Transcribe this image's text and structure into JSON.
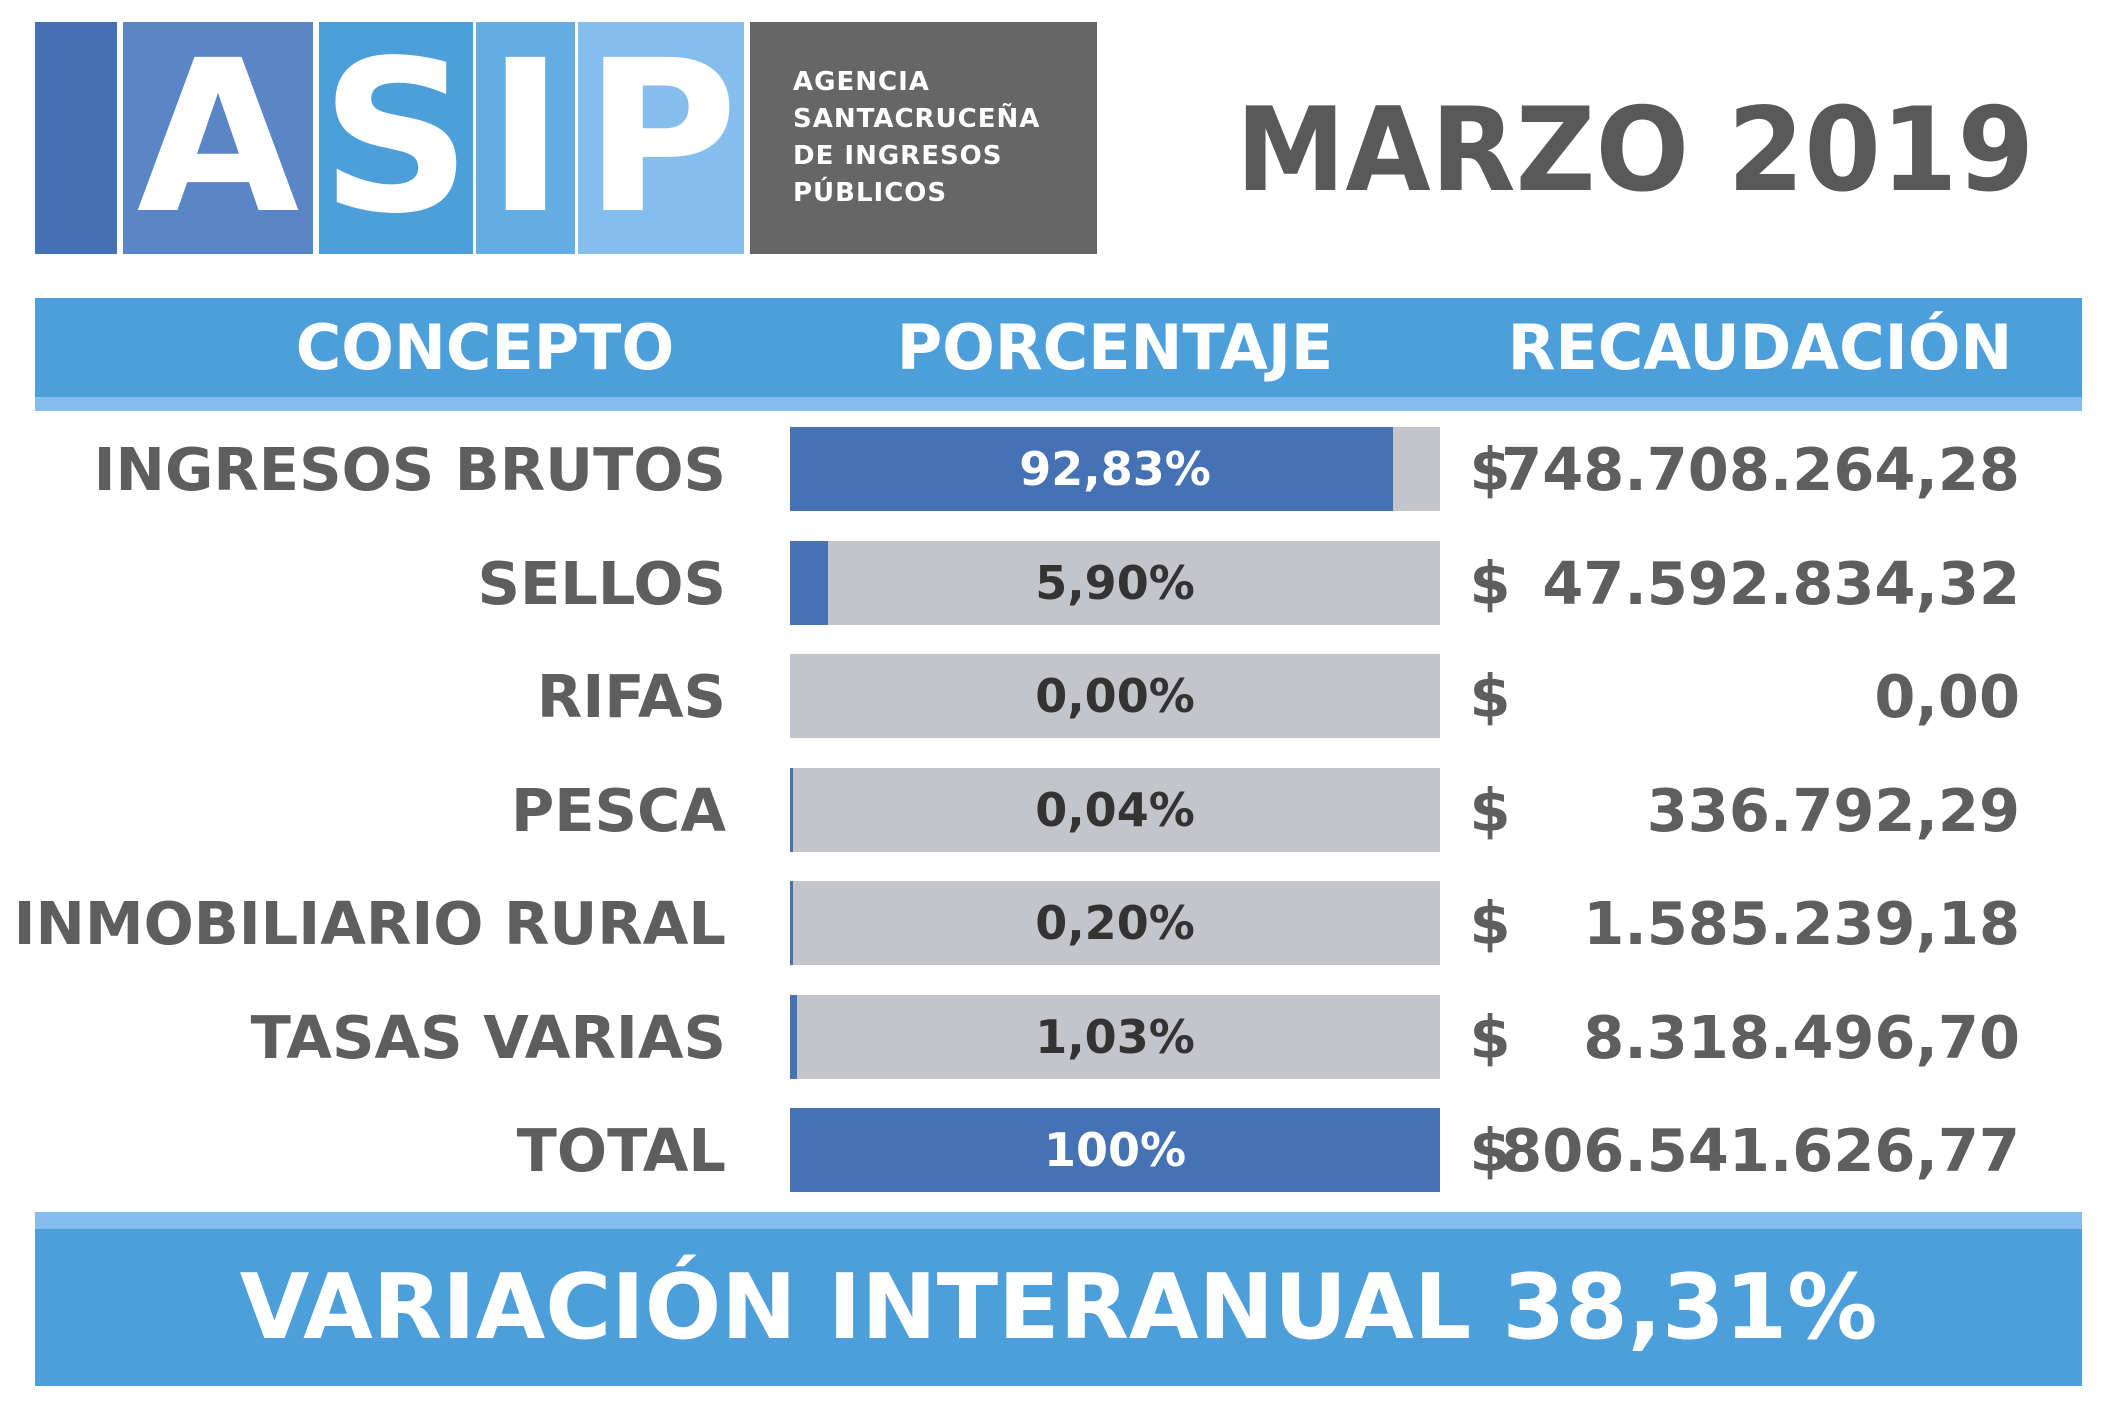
{
  "logo": {
    "letters": [
      "A",
      "S",
      "I",
      "P"
    ],
    "block_colors": [
      "#4570b5",
      "#5a86c8",
      "#4d9fdb",
      "#65aee4",
      "#85bdec"
    ],
    "agency_lines": [
      "AGENCIA",
      "SANTACRUCEÑA",
      "DE INGRESOS",
      "PÚBLICOS"
    ]
  },
  "period": "MARZO 2019",
  "headers": {
    "concepto": "CONCEPTO",
    "porcentaje": "PORCENTAJE",
    "recaudacion": "RECAUDACIÓN"
  },
  "currency_symbol": "$",
  "colors": {
    "header": "#4d9fdb",
    "header_strip": "#85bdec",
    "bar_fill": "#4571b5",
    "bar_track": "#c4c5ca",
    "text": "#5e5e5e"
  },
  "chart_data": {
    "type": "bar",
    "orientation": "horizontal",
    "categories": [
      "INGRESOS BRUTOS",
      "SELLOS",
      "RIFAS",
      "PESCA",
      "INMOBILIARIO RURAL",
      "TASAS VARIAS",
      "TOTAL"
    ],
    "percent_values": [
      92.83,
      5.9,
      0.0,
      0.04,
      0.2,
      1.03,
      100
    ],
    "percent_labels": [
      "92,83%",
      "5,90%",
      "0,00%",
      "0,04%",
      "0,20%",
      "1,03%",
      "100%"
    ],
    "amounts": [
      "748.708.264,28",
      "47.592.834,32",
      "0,00",
      "336.792,29",
      "1.585.239,18",
      "8.318.496,70",
      "806.541.626,77"
    ],
    "xlim": [
      0,
      100
    ]
  },
  "footer": {
    "text": "VARIACIÓN INTERANUAL 38,31%"
  }
}
